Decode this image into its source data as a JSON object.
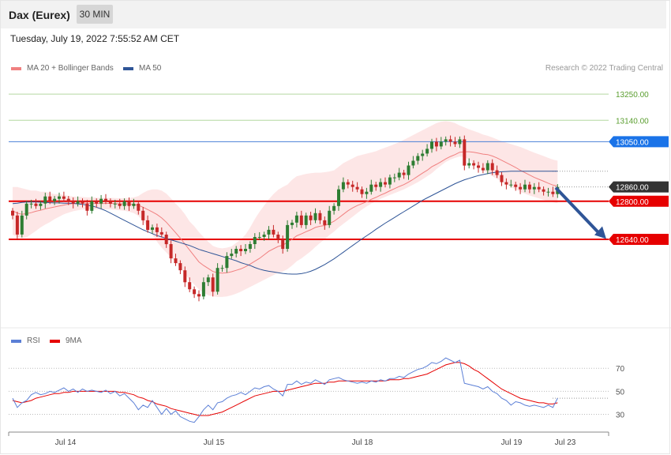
{
  "header": {
    "title": "Dax (Eurex)",
    "interval": "30 MIN"
  },
  "timestamp": "Tuesday, July 19, 2022 7:55:52 AM CET",
  "legend": {
    "ma20": {
      "label": "MA 20 + Bollinger Bands",
      "color": "#f08080"
    },
    "ma50": {
      "label": "MA 50",
      "color": "#2f5597"
    }
  },
  "credit": "Research © 2022 Trading Central",
  "rsi_legend": {
    "rsi": {
      "label": "RSI",
      "color": "#5b7fd6"
    },
    "ma9": {
      "label": "9MA",
      "color": "#e60000"
    }
  },
  "colors": {
    "up": "#2e7d32",
    "down": "#c62828",
    "resistance": "#e60000",
    "target_arrow": "#2f5597"
  },
  "chart_data": [
    {
      "type": "candlestick",
      "ylim": [
        12285,
        13330
      ],
      "x_tick_labels": [
        "Jul 14",
        "Jul 15",
        "Jul 18",
        "Jul 19",
        "Jul 23"
      ],
      "levels": [
        {
          "label": "13250.00",
          "value": 13250,
          "kind": "target"
        },
        {
          "label": "13140.00",
          "value": 13140,
          "kind": "target"
        },
        {
          "label": "13050.00",
          "value": 13050,
          "kind": "resistance"
        },
        {
          "label": "12860.00",
          "value": 12860,
          "kind": "last"
        },
        {
          "label": "12800.00",
          "value": 12800,
          "kind": "support"
        },
        {
          "label": "12640.00",
          "value": 12640,
          "kind": "support"
        }
      ],
      "closes": [
        12740,
        12660,
        12740,
        12790,
        12790,
        12780,
        12790,
        12820,
        12800,
        12810,
        12820,
        12810,
        12800,
        12790,
        12800,
        12790,
        12760,
        12800,
        12790,
        12810,
        12800,
        12790,
        12790,
        12780,
        12800,
        12780,
        12790,
        12760,
        12720,
        12680,
        12690,
        12670,
        12660,
        12620,
        12560,
        12540,
        12510,
        12460,
        12430,
        12410,
        12400,
        12460,
        12480,
        12420,
        12520,
        12520,
        12570,
        12580,
        12600,
        12590,
        12600,
        12620,
        12650,
        12650,
        12660,
        12680,
        12660,
        12640,
        12600,
        12700,
        12710,
        12740,
        12700,
        12740,
        12720,
        12750,
        12720,
        12700,
        12760,
        12780,
        12850,
        12880,
        12870,
        12860,
        12850,
        12830,
        12840,
        12870,
        12860,
        12880,
        12870,
        12900,
        12900,
        12920,
        12910,
        12950,
        12970,
        12990,
        13000,
        13020,
        13050,
        13030,
        13050,
        13060,
        13050,
        13040,
        13060,
        12950,
        12960,
        12950,
        12940,
        12930,
        12960,
        12930,
        12910,
        12880,
        12870,
        12870,
        12860,
        12850,
        12870,
        12850,
        12860,
        12850,
        12840,
        12840,
        12830,
        12860
      ],
      "ma20": [
        12760,
        12750,
        12745,
        12748,
        12752,
        12758,
        12762,
        12768,
        12772,
        12776,
        12780,
        12784,
        12788,
        12790,
        12792,
        12793,
        12792,
        12792,
        12791,
        12790,
        12791,
        12791,
        12790,
        12789,
        12789,
        12788,
        12786,
        12783,
        12775,
        12765,
        12755,
        12744,
        12730,
        12712,
        12690,
        12668,
        12645,
        12620,
        12595,
        12570,
        12545,
        12530,
        12518,
        12505,
        12500,
        12498,
        12500,
        12504,
        12510,
        12516,
        12525,
        12536,
        12548,
        12560,
        12575,
        12590,
        12600,
        12610,
        12615,
        12628,
        12640,
        12655,
        12663,
        12672,
        12680,
        12690,
        12695,
        12698,
        12706,
        12716,
        12730,
        12745,
        12760,
        12772,
        12782,
        12790,
        12798,
        12808,
        12816,
        12826,
        12834,
        12844,
        12853,
        12862,
        12870,
        12880,
        12892,
        12905,
        12918,
        12930,
        12945,
        12955,
        12966,
        12978,
        12988,
        12996,
        13006,
        13008,
        13008,
        13006,
        13002,
        12998,
        12996,
        12990,
        12982,
        12972,
        12962,
        12952,
        12942,
        12930,
        12920,
        12910,
        12900,
        12892,
        12884,
        12876,
        12868,
        12864
      ],
      "bb_upper": [
        12860,
        12860,
        12855,
        12850,
        12845,
        12845,
        12840,
        12840,
        12835,
        12830,
        12830,
        12826,
        12822,
        12820,
        12818,
        12818,
        12816,
        12816,
        12815,
        12814,
        12814,
        12814,
        12813,
        12812,
        12813,
        12814,
        12816,
        12822,
        12835,
        12845,
        12850,
        12850,
        12845,
        12832,
        12812,
        12790,
        12770,
        12745,
        12715,
        12695,
        12670,
        12650,
        12630,
        12612,
        12605,
        12602,
        12605,
        12610,
        12625,
        12640,
        12660,
        12690,
        12725,
        12755,
        12782,
        12808,
        12830,
        12848,
        12860,
        12870,
        12890,
        12905,
        12910,
        12915,
        12918,
        12920,
        12920,
        12922,
        12925,
        12930,
        12945,
        12960,
        12970,
        12980,
        12990,
        12995,
        13000,
        13005,
        13010,
        13018,
        13025,
        13032,
        13040,
        13048,
        13058,
        13068,
        13078,
        13088,
        13098,
        13108,
        13118,
        13128,
        13134,
        13136,
        13134,
        13128,
        13118,
        13110,
        13102,
        13095,
        13088,
        13080,
        13075,
        13068,
        13060,
        13052,
        13046,
        13040,
        13034,
        13028,
        13020,
        13012,
        13004,
        12997,
        12990,
        12982,
        12975,
        12970
      ],
      "bb_lower": [
        12660,
        12650,
        12645,
        12648,
        12662,
        12675,
        12690,
        12702,
        12712,
        12725,
        12735,
        12745,
        12752,
        12758,
        12762,
        12765,
        12766,
        12766,
        12766,
        12765,
        12766,
        12766,
        12764,
        12762,
        12760,
        12756,
        12750,
        12738,
        12715,
        12690,
        12660,
        12630,
        12605,
        12585,
        12565,
        12545,
        12520,
        12495,
        12470,
        12450,
        12430,
        12415,
        12405,
        12400,
        12398,
        12398,
        12400,
        12405,
        12412,
        12420,
        12430,
        12440,
        12450,
        12460,
        12470,
        12480,
        12490,
        12500,
        12505,
        12515,
        12530,
        12548,
        12560,
        12575,
        12590,
        12608,
        12625,
        12640,
        12658,
        12672,
        12690,
        12705,
        12720,
        12735,
        12750,
        12765,
        12778,
        12790,
        12800,
        12810,
        12818,
        12826,
        12834,
        12842,
        12850,
        12860,
        12870,
        12880,
        12892,
        12905,
        12918,
        12935,
        12950,
        12965,
        12975,
        12982,
        12988,
        12986,
        12974,
        12960,
        12946,
        12932,
        12918,
        12905,
        12894,
        12882,
        12870,
        12860,
        12850,
        12840,
        12832,
        12824,
        12818,
        12812,
        12806,
        12800,
        12796,
        12792
      ],
      "ma50": [
        12790,
        12792,
        12795,
        12797,
        12797,
        12797,
        12796,
        12795,
        12794,
        12793,
        12793,
        12792,
        12792,
        12791,
        12789,
        12787,
        12784,
        12780,
        12775,
        12768,
        12760,
        12750,
        12740,
        12730,
        12720,
        12710,
        12700,
        12690,
        12680,
        12672,
        12664,
        12656,
        12650,
        12644,
        12638,
        12632,
        12626,
        12620,
        12614,
        12606,
        12598,
        12592,
        12586,
        12580,
        12574,
        12568,
        12562,
        12556,
        12550,
        12542,
        12536,
        12530,
        12522,
        12515,
        12510,
        12506,
        12503,
        12500,
        12497,
        12495,
        12494,
        12494,
        12496,
        12500,
        12506,
        12514,
        12524,
        12534,
        12546,
        12558,
        12572,
        12586,
        12600,
        12614,
        12628,
        12642,
        12655,
        12668,
        12682,
        12695,
        12708,
        12720,
        12732,
        12744,
        12756,
        12768,
        12780,
        12792,
        12804,
        12814,
        12824,
        12834,
        12844,
        12854,
        12864,
        12874,
        12882,
        12890,
        12896,
        12902,
        12908,
        12912,
        12916,
        12920,
        12922,
        12924,
        12925,
        12926,
        12926,
        12926,
        12926,
        12926,
        12926,
        12926,
        12926,
        12926,
        12926,
        12926
      ]
    },
    {
      "type": "line",
      "title": "RSI",
      "ylim": [
        18,
        88
      ],
      "ytick_labels": [
        "70",
        "50",
        "30"
      ],
      "reference_value": 44,
      "series": [
        {
          "name": "RSI",
          "values": [
            44,
            36,
            40,
            42,
            47,
            49,
            47,
            48,
            50,
            49,
            51,
            53,
            50,
            52,
            49,
            52,
            50,
            51,
            50,
            49,
            51,
            48,
            50,
            46,
            48,
            44,
            40,
            34,
            38,
            36,
            42,
            36,
            30,
            35,
            30,
            33,
            28,
            26,
            24,
            23,
            28,
            34,
            38,
            34,
            40,
            41,
            44,
            46,
            47,
            49,
            47,
            50,
            53,
            52,
            54,
            55,
            52,
            50,
            46,
            56,
            56,
            59,
            56,
            58,
            57,
            60,
            58,
            56,
            60,
            61,
            62,
            60,
            59,
            58,
            57,
            58,
            57,
            59,
            58,
            60,
            59,
            61,
            61,
            63,
            62,
            65,
            67,
            69,
            70,
            72,
            75,
            74,
            76,
            79,
            77,
            75,
            77,
            57,
            56,
            55,
            54,
            52,
            54,
            50,
            48,
            44,
            42,
            38,
            41,
            40,
            38,
            37,
            38,
            37,
            36,
            38,
            36,
            44
          ]
        },
        {
          "name": "9MA",
          "values": [
            42,
            41,
            40,
            41,
            42,
            44,
            45,
            46,
            47,
            48,
            48,
            49,
            49,
            50,
            50,
            50,
            50,
            50,
            50,
            50,
            50,
            50,
            50,
            49,
            49,
            48,
            47,
            45,
            44,
            42,
            41,
            39,
            38,
            37,
            35,
            34,
            33,
            32,
            31,
            30,
            29,
            29,
            29,
            30,
            31,
            32,
            34,
            36,
            38,
            40,
            42,
            44,
            46,
            47,
            48,
            49,
            50,
            50,
            50,
            51,
            52,
            53,
            54,
            55,
            56,
            57,
            57,
            57,
            58,
            58,
            59,
            59,
            59,
            59,
            59,
            59,
            59,
            59,
            59,
            59,
            59,
            60,
            60,
            60,
            61,
            61,
            62,
            63,
            64,
            65,
            67,
            69,
            71,
            73,
            74,
            75,
            75,
            74,
            72,
            69,
            67,
            64,
            61,
            58,
            55,
            52,
            50,
            48,
            46,
            44,
            43,
            42,
            41,
            40,
            40,
            39,
            39,
            40
          ]
        }
      ]
    }
  ]
}
